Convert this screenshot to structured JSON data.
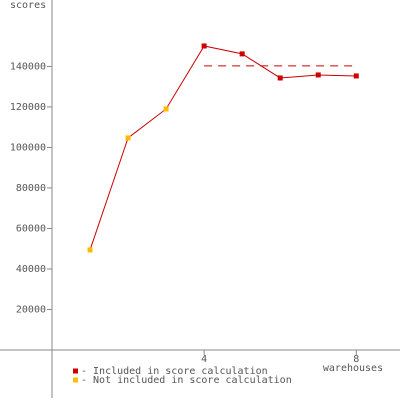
{
  "chart_data": {
    "type": "line",
    "y_label": "scores",
    "x_label": "warehouses",
    "xlim": [
      0,
      9.15
    ],
    "ylim": [
      0,
      172800
    ],
    "xticks": [
      4,
      8
    ],
    "yticks": [
      20000,
      40000,
      60000,
      80000,
      100000,
      120000,
      140000
    ],
    "line_color": "#cc0000",
    "series": [
      {
        "name": "- Included in score calculation",
        "color": "#cc0000",
        "x": [
          4,
          5,
          6,
          7,
          8
        ],
        "values": [
          150100,
          146200,
          134300,
          135800,
          135300
        ]
      },
      {
        "name": "- Not included in score calculation",
        "color": "#ffbb00",
        "x": [
          1,
          2,
          3
        ],
        "values": [
          49400,
          104700,
          119000
        ]
      }
    ],
    "reference_line": {
      "value": 140300,
      "from": 4,
      "to": 8
    }
  }
}
